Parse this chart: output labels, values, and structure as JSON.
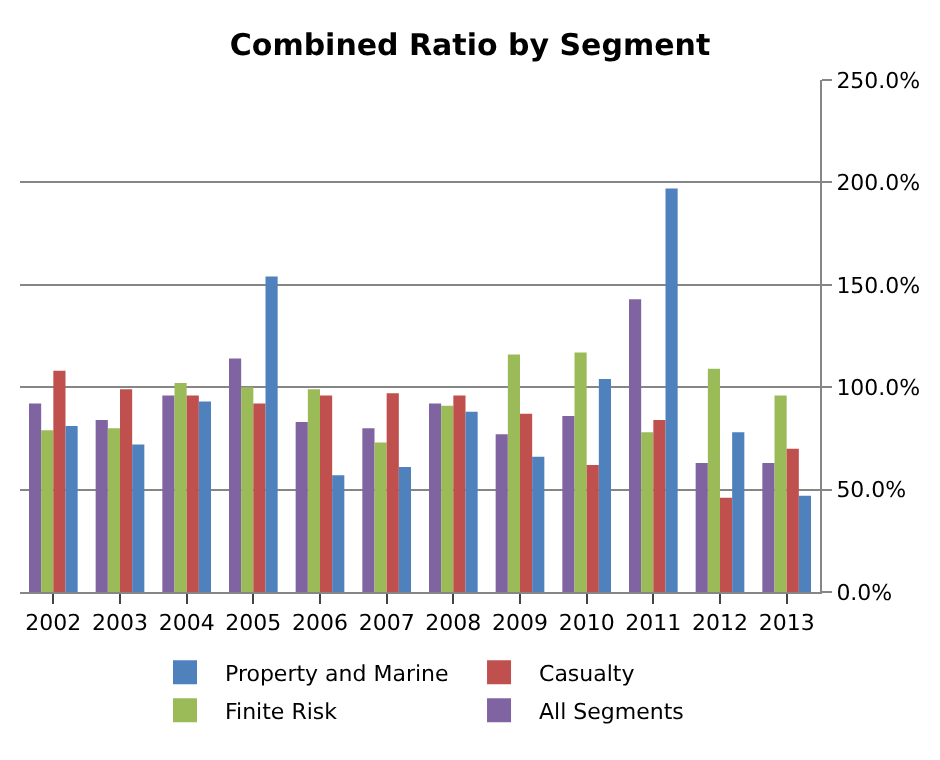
{
  "chart_data": {
    "type": "bar",
    "title": "Combined Ratio by Segment",
    "categories": [
      "2002",
      "2003",
      "2004",
      "2005",
      "2006",
      "2007",
      "2008",
      "2009",
      "2010",
      "2011",
      "2012",
      "2013"
    ],
    "series": [
      {
        "name": "All Segments",
        "color": "#8064a2",
        "values": [
          92,
          84,
          96,
          114,
          83,
          80,
          92,
          77,
          86,
          143,
          63,
          63
        ]
      },
      {
        "name": "Finite Risk",
        "color": "#9bbb59",
        "values": [
          79,
          80,
          102,
          100,
          99,
          73,
          91,
          116,
          117,
          78,
          109,
          96
        ]
      },
      {
        "name": "Casualty",
        "color": "#c0504d",
        "values": [
          108,
          99,
          96,
          92,
          96,
          97,
          96,
          87,
          62,
          84,
          46,
          70
        ]
      },
      {
        "name": "Property and Marine",
        "color": "#4f81bd",
        "values": [
          81,
          72,
          93,
          154,
          57,
          61,
          88,
          66,
          104,
          197,
          78,
          47
        ]
      }
    ],
    "ylim": [
      0,
      250
    ],
    "yticks": [
      {
        "value": 0,
        "label": "0.0%"
      },
      {
        "value": 50,
        "label": "50.0%"
      },
      {
        "value": 100,
        "label": "100.0%"
      },
      {
        "value": 150,
        "label": "150.0%"
      },
      {
        "value": 200,
        "label": "200.0%"
      },
      {
        "value": 250,
        "label": "250.0%"
      }
    ],
    "grid": "y",
    "legend": "bottom"
  }
}
